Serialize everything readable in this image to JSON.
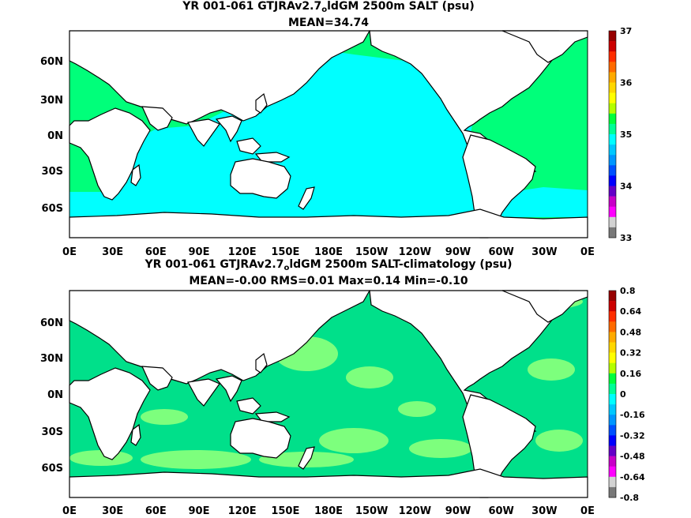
{
  "panels": [
    {
      "title_pre": "YR 001-061 GTJRAv2.7",
      "title_sub": "o",
      "title_post": "ldGM 2500m SALT (psu)",
      "stats": "MEAN=34.74",
      "y_ticks": [
        "60N",
        "30N",
        "0N",
        "30S",
        "60S"
      ],
      "x_ticks": [
        "0E",
        "30E",
        "60E",
        "90E",
        "120E",
        "150E",
        "180E",
        "150W",
        "120W",
        "90W",
        "60W",
        "30W",
        "0E"
      ],
      "colorbar_labels": [
        "37",
        "36",
        "35",
        "34",
        "33"
      ]
    },
    {
      "title_pre": "YR 001-061 GTJRAv2.7",
      "title_sub": "o",
      "title_post": "ldGM 2500m SALT-climatology (psu)",
      "stats": "MEAN=-0.00   RMS=0.01   Max=0.14   Min=-0.10",
      "y_ticks": [
        "60N",
        "30N",
        "0N",
        "30S",
        "60S"
      ],
      "x_ticks": [
        "0E",
        "30E",
        "60E",
        "90E",
        "120E",
        "150E",
        "180E",
        "150W",
        "120W",
        "90W",
        "60W",
        "30W",
        "0E"
      ],
      "colorbar_labels": [
        "0.8",
        "0.64",
        "0.48",
        "0.32",
        "0.16",
        "0",
        "-0.16",
        "-0.32",
        "-0.48",
        "-0.64",
        "-0.8"
      ]
    }
  ],
  "colors": {
    "top_pacific": "#00ffff",
    "top_atlantic": "#00ff7a",
    "bottom_base": "#00e08a",
    "bottom_patch": "#7dff7d",
    "land": "#ffffff"
  },
  "colorbar": {
    "top": [
      "#960000",
      "#cc0000",
      "#ff2d00",
      "#ff6a00",
      "#ffaa00",
      "#ffd700",
      "#ffff00",
      "#b4ff00",
      "#00ff3c",
      "#00ff96",
      "#00ffff",
      "#00c8ff",
      "#0096ff",
      "#0050ff",
      "#0000ff",
      "#6400c8",
      "#c800c8",
      "#ff00ff",
      "#d2d2d2",
      "#787878"
    ],
    "bottom": [
      "#960000",
      "#cc0000",
      "#ff2d00",
      "#ff6a00",
      "#ffaa00",
      "#ffd700",
      "#ffff00",
      "#b4ff00",
      "#00ff3c",
      "#00ff96",
      "#00ffff",
      "#00c8ff",
      "#0096ff",
      "#0050ff",
      "#0000ff",
      "#6400c8",
      "#c800c8",
      "#ff00ff",
      "#d2d2d2",
      "#787878"
    ]
  }
}
